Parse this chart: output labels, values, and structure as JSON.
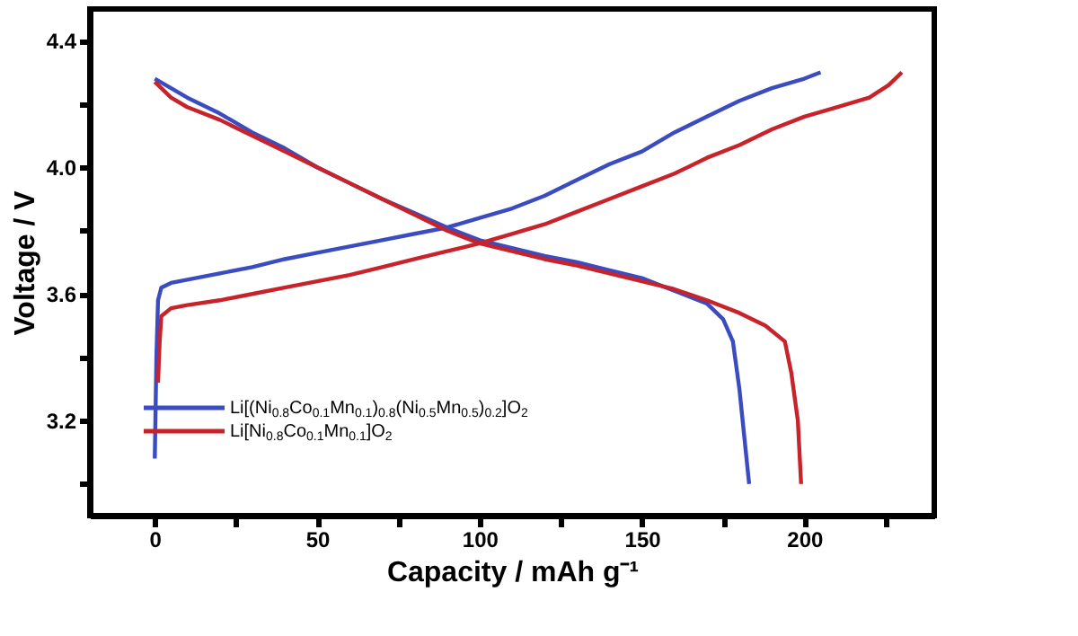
{
  "chart_data": {
    "type": "line",
    "xlabel": "Capacity  /  mAh g⁻¹",
    "ylabel": "Voltage  /  V",
    "xlim": [
      -20,
      240
    ],
    "ylim": [
      2.9,
      4.5
    ],
    "xticks": [
      0,
      {
        "value": 25,
        "label": null
      },
      50,
      {
        "value": 75,
        "label": null
      },
      100,
      {
        "value": 125,
        "label": null
      },
      150,
      {
        "value": 175,
        "label": null
      },
      200,
      {
        "value": 225,
        "label": null
      }
    ],
    "yticks": [
      {
        "value": 3.0,
        "label": null
      },
      3.2,
      {
        "value": 3.4,
        "label": null
      },
      3.6,
      {
        "value": 3.8,
        "label": null
      },
      {
        "value": 4.0,
        "label": "4.0"
      },
      {
        "value": 4.2,
        "label": null
      },
      4.4
    ],
    "legend": "bottom left",
    "grid": false,
    "marker": "none",
    "line_style": "solid",
    "series": [
      {
        "name": "Li[(Ni$_{0.8}$Co$_{0.1}$Mn$_{0.1}$)$_{0.8}$(Ni$_{0.5}$Mn$_{0.5}$)$_{0.2}$]O$_{2}$",
        "color": "#3a4cc0",
        "x": [
          0,
          0.5,
          1,
          2,
          5,
          10,
          20,
          30,
          40,
          50,
          60,
          70,
          80,
          90,
          100,
          110,
          120,
          130,
          140,
          150,
          160,
          170,
          180,
          190,
          200,
          205
        ],
        "values": [
          3.08,
          3.4,
          3.58,
          3.62,
          3.635,
          3.645,
          3.665,
          3.685,
          3.71,
          3.73,
          3.75,
          3.77,
          3.79,
          3.81,
          3.84,
          3.87,
          3.91,
          3.96,
          4.01,
          4.05,
          4.11,
          4.16,
          4.21,
          4.25,
          4.28,
          4.3
        ]
      },
      {
        "color": "#3a4cc0",
        "x": [
          0,
          5,
          10,
          20,
          30,
          40,
          50,
          60,
          70,
          80,
          90,
          100,
          110,
          120,
          130,
          140,
          150,
          160,
          170,
          175,
          178,
          180,
          182,
          183
        ],
        "values": [
          4.28,
          4.25,
          4.22,
          4.17,
          4.11,
          4.06,
          4.0,
          3.95,
          3.9,
          3.855,
          3.81,
          3.77,
          3.745,
          3.72,
          3.7,
          3.675,
          3.65,
          3.61,
          3.57,
          3.52,
          3.45,
          3.3,
          3.1,
          3.0
        ]
      },
      {
        "name": "Li[Ni$_{0.8}$Co$_{0.1}$Mn$_{0.1}$]O$_{2}$",
        "color": "#c8222a",
        "x": [
          1,
          1.5,
          2,
          5,
          10,
          20,
          30,
          40,
          50,
          60,
          70,
          80,
          90,
          100,
          110,
          120,
          130,
          140,
          150,
          160,
          170,
          180,
          190,
          200,
          210,
          220,
          226,
          230
        ],
        "values": [
          3.32,
          3.45,
          3.53,
          3.555,
          3.565,
          3.58,
          3.6,
          3.62,
          3.64,
          3.66,
          3.685,
          3.71,
          3.735,
          3.76,
          3.79,
          3.82,
          3.86,
          3.9,
          3.94,
          3.98,
          4.03,
          4.07,
          4.12,
          4.16,
          4.19,
          4.22,
          4.26,
          4.3
        ]
      },
      {
        "color": "#c8222a",
        "x": [
          0,
          5,
          10,
          20,
          30,
          40,
          50,
          60,
          70,
          80,
          90,
          100,
          110,
          120,
          130,
          140,
          150,
          160,
          170,
          180,
          188,
          194,
          196,
          198,
          199
        ],
        "values": [
          4.27,
          4.22,
          4.19,
          4.15,
          4.1,
          4.05,
          4.0,
          3.95,
          3.9,
          3.85,
          3.8,
          3.76,
          3.735,
          3.71,
          3.69,
          3.665,
          3.64,
          3.615,
          3.58,
          3.54,
          3.5,
          3.45,
          3.35,
          3.2,
          3.0
        ]
      }
    ]
  }
}
